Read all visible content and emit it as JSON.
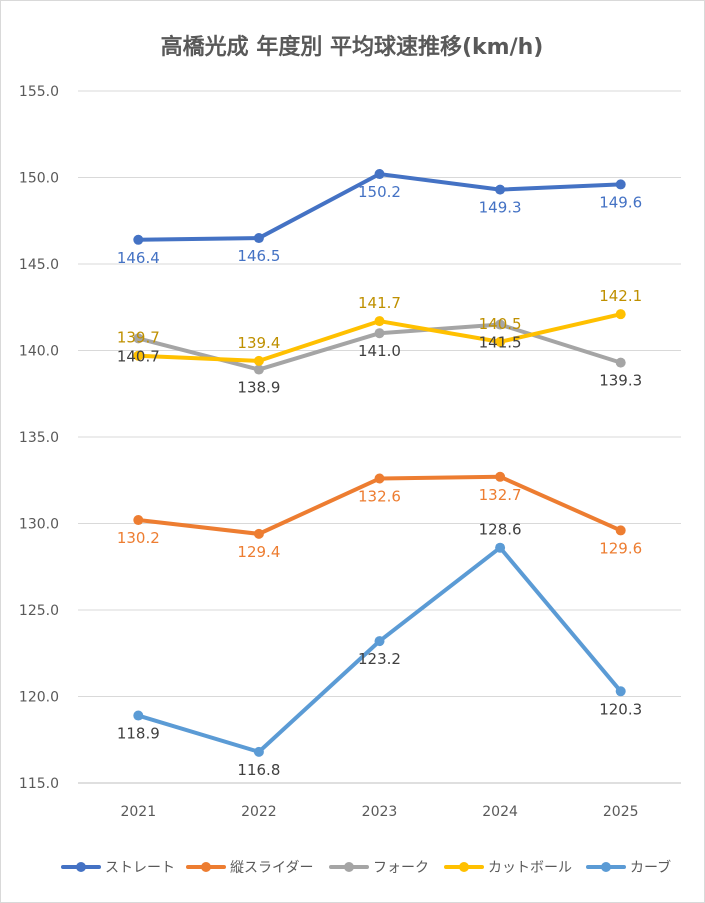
{
  "chart_data": {
    "type": "line",
    "title": "高橋光成 年度別 平均球速推移(km/h)",
    "xlabel": "",
    "ylabel": "",
    "categories": [
      "2021",
      "2022",
      "2023",
      "2024",
      "2025"
    ],
    "ylim": [
      115.0,
      155.0
    ],
    "yticks": [
      "115.0",
      "120.0",
      "125.0",
      "130.0",
      "135.0",
      "140.0",
      "145.0",
      "150.0",
      "155.0"
    ],
    "grid": true,
    "legend": "bottom",
    "series": [
      {
        "name": "ストレート",
        "color": "#4472c4",
        "values": [
          146.4,
          146.5,
          150.2,
          149.3,
          149.6
        ],
        "labels": [
          "146.4",
          "146.5",
          "150.2",
          "149.3",
          "149.6"
        ]
      },
      {
        "name": "縦スライダー",
        "color": "#ed7d31",
        "values": [
          130.2,
          129.4,
          132.6,
          132.7,
          129.6
        ],
        "labels": [
          "130.2",
          "129.4",
          "132.6",
          "132.7",
          "129.6"
        ]
      },
      {
        "name": "フォーク",
        "color": "#a5a5a5",
        "values": [
          140.7,
          138.9,
          141.0,
          141.5,
          139.3
        ],
        "labels": [
          "140.7",
          "138.9",
          "141.0",
          "141.5",
          "139.3"
        ]
      },
      {
        "name": "カットボール",
        "color": "#ffc000",
        "values": [
          139.7,
          139.4,
          141.7,
          140.5,
          142.1
        ],
        "labels": [
          "139.7",
          "139.4",
          "141.7",
          "140.5",
          "142.1"
        ]
      },
      {
        "name": "カーブ",
        "color": "#5b9bd5",
        "values": [
          118.9,
          116.8,
          123.2,
          128.6,
          120.3
        ],
        "labels": [
          "118.9",
          "116.8",
          "123.2",
          "128.6",
          "120.3"
        ]
      }
    ]
  }
}
